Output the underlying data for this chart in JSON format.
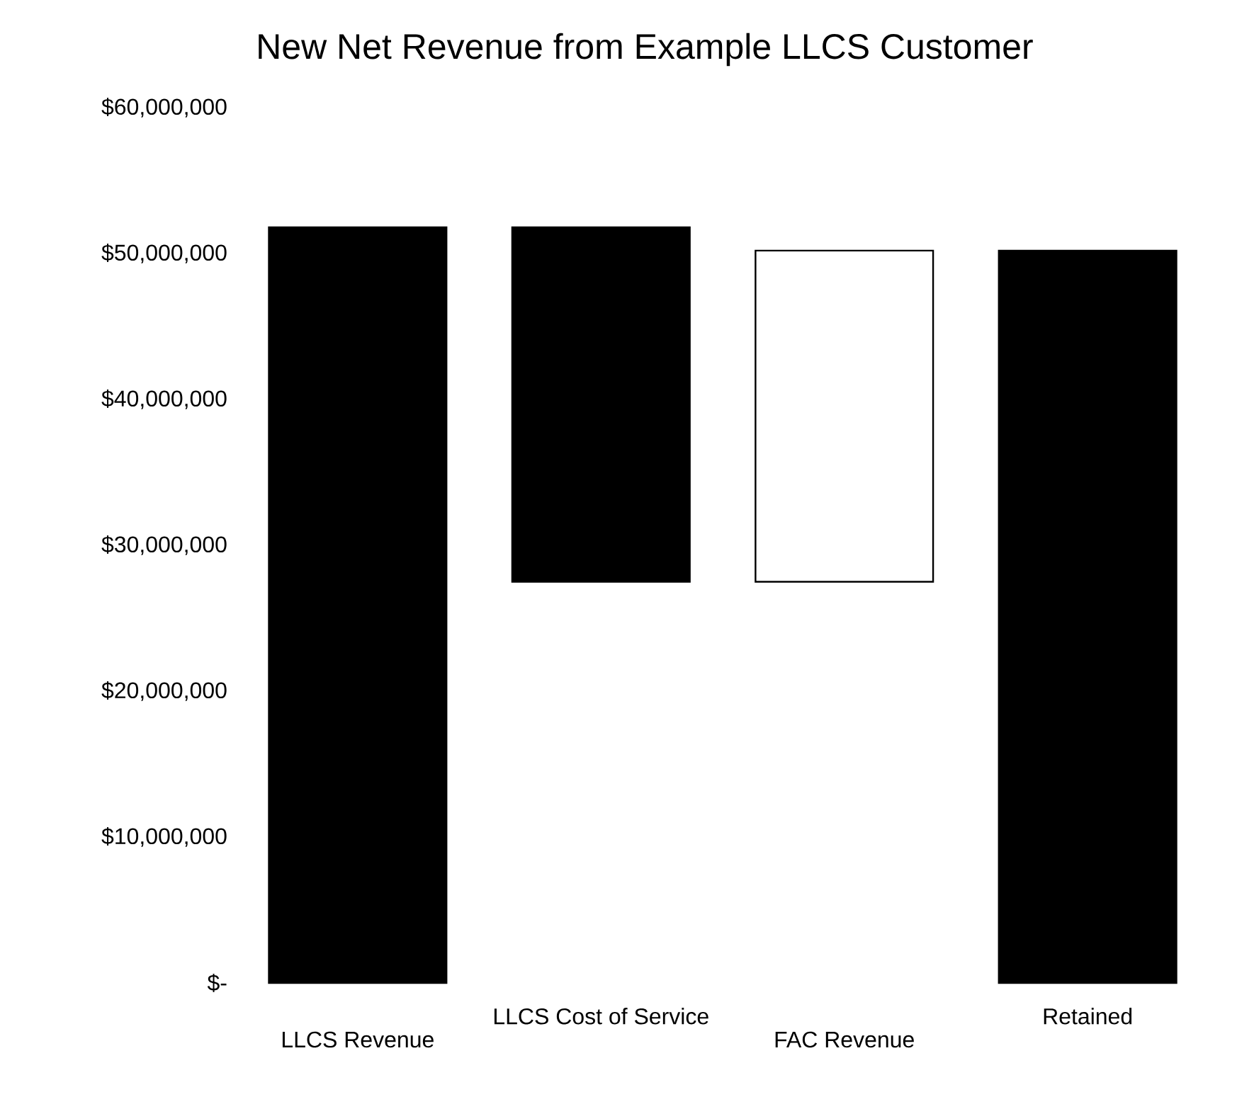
{
  "chart_data": {
    "type": "bar",
    "title": "New Net Revenue from Example LLCS Customer",
    "categories": [
      "LLCS Revenue",
      "LLCS Cost of Service",
      "FAC Revenue",
      "Retained"
    ],
    "values": [
      51800000,
      24300000,
      22700000,
      50200000
    ],
    "base": [
      0,
      27500000,
      27500000,
      0
    ],
    "colors": [
      "#000000",
      "#000000",
      "#ffffff",
      "#000000"
    ],
    "ylim": [
      0,
      60000000
    ],
    "yticks": [
      {
        "value": 0,
        "label": "$-"
      },
      {
        "value": 10000000,
        "label": "$10,000,000"
      },
      {
        "value": 20000000,
        "label": "$20,000,000"
      },
      {
        "value": 30000000,
        "label": "$30,000,000"
      },
      {
        "value": 40000000,
        "label": "$40,000,000"
      },
      {
        "value": 50000000,
        "label": "$50,000,000"
      },
      {
        "value": 60000000,
        "label": "$60,000,000"
      }
    ],
    "grid": false
  }
}
